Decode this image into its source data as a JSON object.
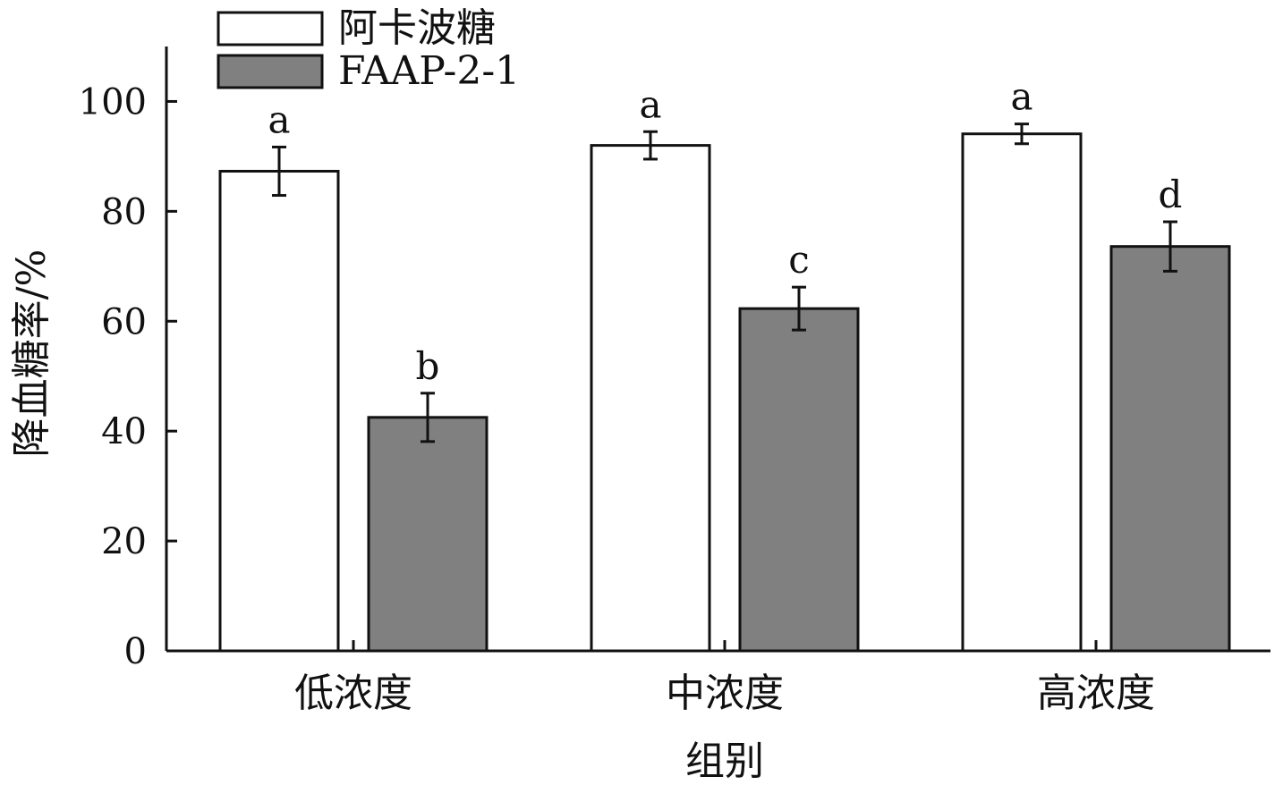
{
  "chart_data": {
    "type": "bar",
    "title": "",
    "xlabel": "组别",
    "ylabel": "降血糖率/%",
    "ylim": [
      0,
      110
    ],
    "yticks": [
      0,
      20,
      40,
      60,
      80,
      100
    ],
    "categories": [
      "低浓度",
      "中浓度",
      "高浓度"
    ],
    "series": [
      {
        "name": "阿卡波糖",
        "color": "#ffffff",
        "values": [
          87.3,
          92.0,
          94.1
        ],
        "errors": [
          4.4,
          2.5,
          1.8
        ],
        "labels": [
          "a",
          "a",
          "a"
        ]
      },
      {
        "name": "FAAP-2-1",
        "color": "#808080",
        "values": [
          42.5,
          62.3,
          73.6
        ],
        "errors": [
          4.4,
          3.9,
          4.5
        ],
        "labels": [
          "b",
          "c",
          "d"
        ]
      }
    ],
    "legend": "top-left",
    "grid": false
  }
}
